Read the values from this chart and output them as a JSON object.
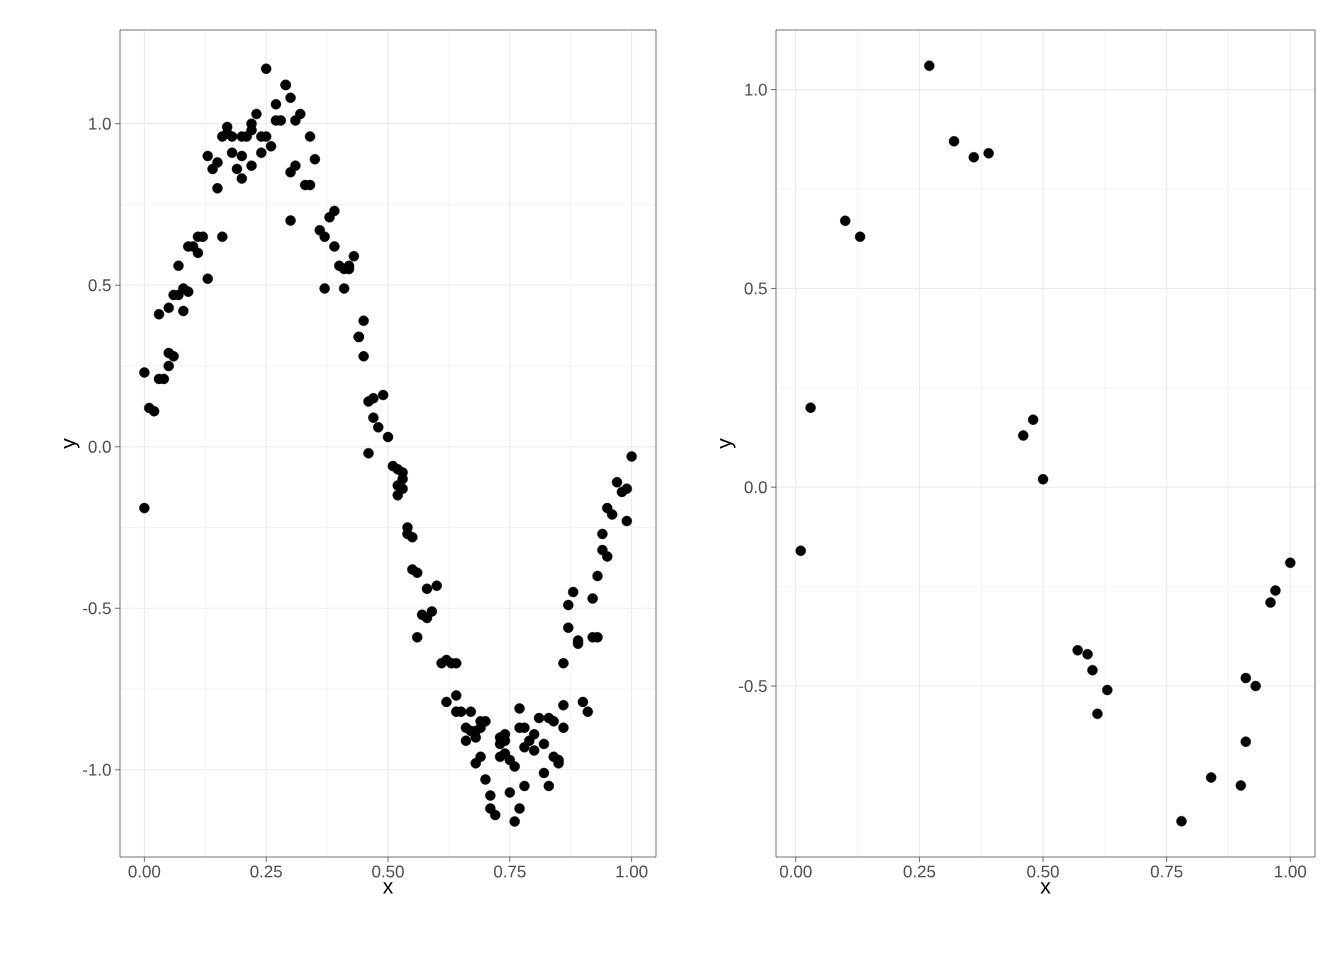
{
  "chart_data": [
    {
      "type": "scatter",
      "xlabel": "x",
      "ylabel": "y",
      "color": "#000000",
      "marker": "circle",
      "grid": true,
      "xlim": [
        -0.05,
        1.05
      ],
      "ylim": [
        -1.27,
        1.29
      ],
      "xticks": [
        {
          "value": 0,
          "label": "0.00"
        },
        {
          "value": 0.25,
          "label": "0.25"
        },
        {
          "value": 0.5,
          "label": "0.50"
        },
        {
          "value": 0.75,
          "label": "0.75"
        },
        {
          "value": 1,
          "label": "1.00"
        }
      ],
      "yticks": [
        {
          "value": -1,
          "label": "-1.0"
        },
        {
          "value": -0.5,
          "label": "-0.5"
        },
        {
          "value": 0,
          "label": "0.0"
        },
        {
          "value": 0.5,
          "label": "0.5"
        },
        {
          "value": 1,
          "label": "1.0"
        }
      ],
      "x": [
        0.0,
        0.0,
        0.01,
        0.02,
        0.03,
        0.03,
        0.04,
        0.05,
        0.05,
        0.05,
        0.06,
        0.06,
        0.07,
        0.07,
        0.08,
        0.08,
        0.09,
        0.09,
        0.1,
        0.11,
        0.11,
        0.12,
        0.13,
        0.13,
        0.14,
        0.15,
        0.15,
        0.16,
        0.16,
        0.17,
        0.17,
        0.18,
        0.18,
        0.19,
        0.2,
        0.2,
        0.2,
        0.21,
        0.22,
        0.22,
        0.22,
        0.23,
        0.24,
        0.24,
        0.25,
        0.25,
        0.26,
        0.27,
        0.27,
        0.28,
        0.29,
        0.29,
        0.3,
        0.3,
        0.3,
        0.31,
        0.31,
        0.32,
        0.33,
        0.34,
        0.34,
        0.35,
        0.36,
        0.37,
        0.37,
        0.38,
        0.39,
        0.39,
        0.4,
        0.41,
        0.41,
        0.42,
        0.42,
        0.43,
        0.44,
        0.44,
        0.45,
        0.45,
        0.46,
        0.46,
        0.47,
        0.47,
        0.48,
        0.49,
        0.5,
        0.51,
        0.52,
        0.52,
        0.52,
        0.53,
        0.53,
        0.53,
        0.54,
        0.54,
        0.55,
        0.55,
        0.56,
        0.56,
        0.57,
        0.58,
        0.58,
        0.59,
        0.6,
        0.61,
        0.62,
        0.63,
        0.62,
        0.64,
        0.64,
        0.64,
        0.65,
        0.66,
        0.66,
        0.67,
        0.67,
        0.68,
        0.68,
        0.68,
        0.69,
        0.69,
        0.69,
        0.7,
        0.7,
        0.71,
        0.71,
        0.72,
        0.73,
        0.73,
        0.73,
        0.74,
        0.74,
        0.74,
        0.75,
        0.75,
        0.76,
        0.76,
        0.77,
        0.77,
        0.77,
        0.78,
        0.78,
        0.78,
        0.79,
        0.8,
        0.8,
        0.81,
        0.82,
        0.82,
        0.83,
        0.83,
        0.84,
        0.84,
        0.85,
        0.85,
        0.86,
        0.86,
        0.86,
        0.87,
        0.87,
        0.88,
        0.89,
        0.89,
        0.9,
        0.91,
        0.92,
        0.93,
        0.92,
        0.93,
        0.94,
        0.94,
        0.95,
        0.95,
        0.96,
        0.97,
        0.98,
        0.99,
        0.99,
        1.0
      ],
      "values": [
        -0.19,
        0.23,
        0.12,
        0.11,
        0.41,
        0.21,
        0.21,
        0.43,
        0.29,
        0.25,
        0.28,
        0.47,
        0.56,
        0.47,
        0.42,
        0.49,
        0.48,
        0.62,
        0.62,
        0.65,
        0.6,
        0.65,
        0.52,
        0.9,
        0.86,
        0.8,
        0.88,
        0.96,
        0.65,
        0.97,
        0.99,
        0.91,
        0.96,
        0.86,
        0.96,
        0.9,
        0.83,
        0.96,
        0.98,
        1.0,
        0.87,
        1.03,
        0.91,
        0.96,
        1.17,
        0.96,
        0.93,
        1.06,
        1.01,
        1.01,
        1.12,
        1.12,
        1.08,
        0.85,
        0.7,
        1.01,
        0.87,
        1.03,
        0.81,
        0.81,
        0.96,
        0.89,
        0.67,
        0.65,
        0.49,
        0.71,
        0.73,
        0.62,
        0.56,
        0.55,
        0.49,
        0.55,
        0.56,
        0.59,
        0.34,
        0.34,
        0.28,
        0.39,
        -0.02,
        0.14,
        0.15,
        0.09,
        0.06,
        0.16,
        0.03,
        -0.06,
        -0.15,
        -0.07,
        -0.12,
        -0.13,
        -0.08,
        -0.1,
        -0.25,
        -0.27,
        -0.28,
        -0.38,
        -0.39,
        -0.59,
        -0.52,
        -0.53,
        -0.44,
        -0.51,
        -0.43,
        -0.67,
        -0.66,
        -0.67,
        -0.79,
        -0.67,
        -0.77,
        -0.82,
        -0.82,
        -0.91,
        -0.87,
        -0.82,
        -0.88,
        -0.9,
        -0.88,
        -0.98,
        -0.85,
        -0.96,
        -0.87,
        -0.85,
        -1.03,
        -1.12,
        -1.08,
        -1.14,
        -0.92,
        -0.9,
        -0.96,
        -0.95,
        -0.89,
        -0.91,
        -0.97,
        -1.07,
        -0.99,
        -1.16,
        -1.12,
        -0.87,
        -0.81,
        -1.05,
        -0.93,
        -0.87,
        -0.91,
        -0.89,
        -0.94,
        -0.84,
        -1.01,
        -0.92,
        -0.84,
        -1.05,
        -0.96,
        -0.85,
        -0.97,
        -0.98,
        -0.87,
        -0.8,
        -0.67,
        -0.56,
        -0.49,
        -0.45,
        -0.61,
        -0.6,
        -0.79,
        -0.82,
        -0.59,
        -0.59,
        -0.47,
        -0.4,
        -0.27,
        -0.32,
        -0.34,
        -0.19,
        -0.21,
        -0.11,
        -0.14,
        -0.13,
        -0.23,
        -0.03
      ]
    },
    {
      "type": "scatter",
      "xlabel": "x",
      "ylabel": "y",
      "color": "#000000",
      "marker": "circle",
      "grid": true,
      "xlim": [
        -0.04,
        1.05
      ],
      "ylim": [
        -0.93,
        1.15
      ],
      "xticks": [
        {
          "value": 0,
          "label": "0.00"
        },
        {
          "value": 0.25,
          "label": "0.25"
        },
        {
          "value": 0.5,
          "label": "0.50"
        },
        {
          "value": 0.75,
          "label": "0.75"
        },
        {
          "value": 1,
          "label": "1.00"
        }
      ],
      "yticks": [
        {
          "value": -0.5,
          "label": "-0.5"
        },
        {
          "value": 0,
          "label": "0.0"
        },
        {
          "value": 0.5,
          "label": "0.5"
        },
        {
          "value": 1,
          "label": "1.0"
        }
      ],
      "x": [
        0.01,
        0.03,
        0.1,
        0.13,
        0.27,
        0.32,
        0.36,
        0.39,
        0.46,
        0.48,
        0.5,
        0.57,
        0.59,
        0.6,
        0.61,
        0.63,
        0.78,
        0.84,
        0.9,
        0.91,
        0.91,
        0.93,
        0.96,
        0.97,
        1.0
      ],
      "values": [
        -0.16,
        0.2,
        0.67,
        0.63,
        1.06,
        0.87,
        0.83,
        0.84,
        0.13,
        0.17,
        0.02,
        -0.41,
        -0.42,
        -0.46,
        -0.57,
        -0.51,
        -0.84,
        -0.73,
        -0.75,
        -0.64,
        -0.48,
        -0.5,
        -0.29,
        -0.26,
        -0.19
      ]
    }
  ]
}
